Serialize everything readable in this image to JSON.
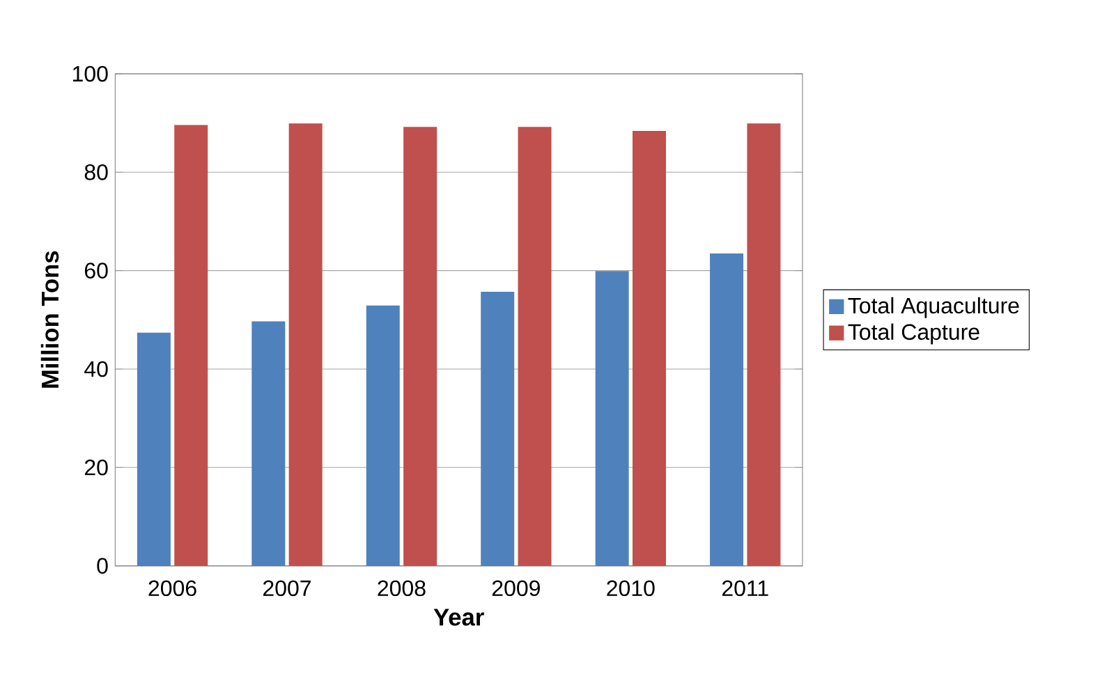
{
  "chart_data": {
    "type": "bar",
    "xlabel": "Year",
    "ylabel": "Million Tons",
    "categories": [
      "2006",
      "2007",
      "2008",
      "2009",
      "2010",
      "2011"
    ],
    "series": [
      {
        "name": "Total Aquaculture",
        "color": "#4f81bd",
        "values": [
          47.4,
          49.7,
          52.9,
          55.7,
          59.9,
          63.5
        ]
      },
      {
        "name": "Total Capture",
        "color": "#c0504d",
        "values": [
          89.6,
          89.9,
          89.2,
          89.2,
          88.4,
          89.9
        ]
      }
    ],
    "ylim": [
      0,
      100
    ],
    "yticks": [
      0,
      20,
      40,
      60,
      80,
      100
    ],
    "grid": "y",
    "legend": "right"
  }
}
